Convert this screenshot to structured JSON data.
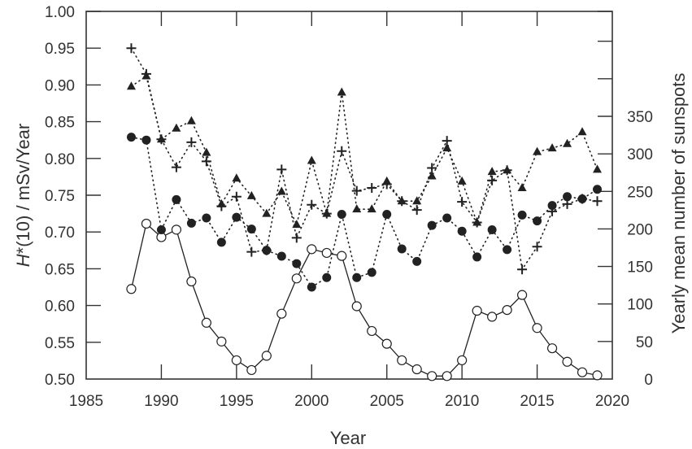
{
  "chart_data": {
    "type": "line",
    "title": "",
    "xlabel": "Year",
    "ylabel_left": "H*(10)  /  mSv/Year",
    "ylabel_left_italic_prefix": "H",
    "ylabel_left_rest": "*(10)  /  mSv/Year",
    "ylabel_right": "Yearly mean number of sunspots",
    "xlim": [
      1985,
      2020
    ],
    "ylim_left": [
      0.5,
      1.0
    ],
    "ylim_right": [
      0,
      460
    ],
    "x_ticks": [
      1985,
      1990,
      1995,
      2000,
      2005,
      2010,
      2015,
      2020
    ],
    "y_left_ticks": [
      "0.50",
      "0.55",
      "0.60",
      "0.65",
      "0.70",
      "0.75",
      "0.80",
      "0.85",
      "0.90",
      "0.95",
      "1.00"
    ],
    "y_right_ticks_labeled": [
      0,
      50,
      100,
      150,
      200,
      250,
      300,
      350
    ],
    "y_right_ticks_unlabeled": [
      400,
      450
    ],
    "grid": false,
    "legend": "none",
    "x": [
      1988,
      1989,
      1990,
      1991,
      1992,
      1993,
      1994,
      1995,
      1996,
      1997,
      1998,
      1999,
      2000,
      2001,
      2002,
      2003,
      2004,
      2005,
      2006,
      2007,
      2008,
      2009,
      2010,
      2011,
      2012,
      2013,
      2014,
      2015,
      2016,
      2017,
      2018,
      2019
    ],
    "series": [
      {
        "name": "H*(10) series (filled triangles)",
        "axis": "left",
        "marker": "triangle",
        "line": "dotted",
        "values": [
          0.898,
          0.912,
          0.826,
          0.841,
          0.851,
          0.808,
          0.738,
          0.773,
          0.749,
          0.725,
          0.755,
          0.71,
          0.797,
          0.725,
          0.89,
          0.731,
          0.731,
          0.769,
          0.742,
          0.742,
          0.776,
          0.814,
          0.769,
          0.713,
          0.782,
          0.784,
          0.76,
          0.809,
          0.814,
          0.82,
          0.836,
          0.785
        ]
      },
      {
        "name": "H*(10) series (crosses)",
        "axis": "left",
        "marker": "cross",
        "line": "dotted",
        "values": [
          0.95,
          0.915,
          0.826,
          0.788,
          0.822,
          0.796,
          0.735,
          0.748,
          0.673,
          0.675,
          0.785,
          0.692,
          0.737,
          0.725,
          0.81,
          0.756,
          0.76,
          0.765,
          0.742,
          0.73,
          0.787,
          0.824,
          0.741,
          0.713,
          0.77,
          0.784,
          0.649,
          0.68,
          0.728,
          0.738,
          0.745,
          0.742
        ]
      },
      {
        "name": "H*(10) series (filled circles)",
        "axis": "left",
        "marker": "filled-circle",
        "line": "dotted",
        "values": [
          0.829,
          0.825,
          0.703,
          0.744,
          0.712,
          0.719,
          0.686,
          0.72,
          0.704,
          0.675,
          0.667,
          0.657,
          0.625,
          0.638,
          0.724,
          0.638,
          0.645,
          0.724,
          0.677,
          0.66,
          0.709,
          0.719,
          0.701,
          0.666,
          0.703,
          0.676,
          0.723,
          0.715,
          0.736,
          0.748,
          0.745,
          0.758
        ]
      },
      {
        "name": "Yearly mean number of sunspots (open circles)",
        "axis": "right",
        "marker": "open-circle",
        "line": "solid",
        "values": [
          120,
          207,
          189,
          199,
          130,
          75,
          50,
          25,
          12,
          31,
          87,
          134,
          173,
          168,
          164,
          97,
          64,
          47,
          25,
          13,
          4,
          4,
          25,
          91,
          83,
          92,
          112,
          68,
          41,
          23,
          9,
          5
        ]
      }
    ]
  },
  "colors": {
    "axis": "#333333",
    "marker": "#222222",
    "background": "#ffffff"
  }
}
